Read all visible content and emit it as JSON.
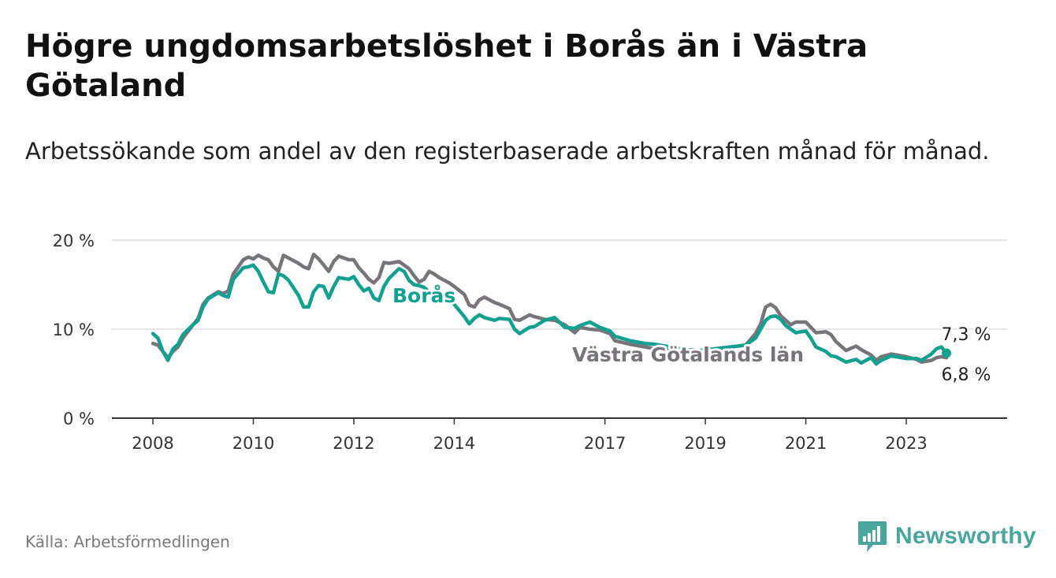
{
  "header": {
    "title": "Högre ungdomsarbetslöshet i Borås än i Västra Götaland",
    "subtitle": "Arbetssökande som andel av den registerbaserade arbetskraften månad för månad."
  },
  "footer": {
    "source": "Källa: Arbetsförmedlingen",
    "brand": "Newsworthy"
  },
  "colors": {
    "boras": "#13a090",
    "vastra": "#77757a",
    "axis": "#333333",
    "grid": "#dddddd",
    "brand": "#4aa69d"
  },
  "chart_data": {
    "type": "line",
    "title": "Högre ungdomsarbetslöshet i Borås än i Västra Götaland",
    "xlabel": "",
    "ylabel": "",
    "xlim": [
      2008,
      2024.6
    ],
    "ylim": [
      0,
      20
    ],
    "y_ticks": [
      0,
      10,
      20
    ],
    "y_tick_labels": [
      "0 %",
      "10 %",
      "20 %"
    ],
    "x_ticks": [
      2008,
      2010,
      2012,
      2014,
      2017,
      2019,
      2021,
      2023
    ],
    "x_tick_labels": [
      "2008",
      "2010",
      "2012",
      "2014",
      "2017",
      "2019",
      "2021",
      "2023"
    ],
    "grid": true,
    "series": [
      {
        "name": "Västra Götalands län",
        "x": [
          2008.0,
          2008.1,
          2008.2,
          2008.3,
          2008.4,
          2008.5,
          2008.6,
          2008.8,
          2008.9,
          2009.0,
          2009.1,
          2009.3,
          2009.4,
          2009.5,
          2009.6,
          2009.8,
          2009.9,
          2010.0,
          2010.1,
          2010.2,
          2010.3,
          2010.4,
          2010.5,
          2010.6,
          2010.7,
          2010.9,
          2011.0,
          2011.1,
          2011.2,
          2011.3,
          2011.4,
          2011.5,
          2011.6,
          2011.7,
          2011.9,
          2012.0,
          2012.1,
          2012.2,
          2012.3,
          2012.4,
          2012.5,
          2012.6,
          2012.7,
          2012.9,
          2013.0,
          2013.1,
          2013.2,
          2013.3,
          2013.4,
          2013.5,
          2013.6,
          2013.7,
          2013.9,
          2014.0,
          2014.2,
          2014.3,
          2014.4,
          2014.5,
          2014.6,
          2014.8,
          2014.9,
          2015.1,
          2015.2,
          2015.3,
          2015.5,
          2015.6,
          2015.8,
          2016.0,
          2016.2,
          2016.4,
          2016.5,
          2016.7,
          2016.9,
          2017.1,
          2017.2,
          2017.5,
          2017.8,
          2018.0,
          2018.3,
          2018.6,
          2018.9,
          2019.2,
          2019.5,
          2019.8,
          2020.0,
          2020.1,
          2020.2,
          2020.3,
          2020.4,
          2020.5,
          2020.6,
          2020.7,
          2020.8,
          2021.0,
          2021.1,
          2021.2,
          2021.4,
          2021.5,
          2021.6,
          2021.8,
          2022.0,
          2022.1,
          2022.3,
          2022.4,
          2022.5,
          2022.7,
          2022.9,
          2023.0,
          2023.2,
          2023.3,
          2023.5,
          2023.6,
          2023.7,
          2023.8
        ],
        "values": [
          8.4,
          8.2,
          7.5,
          6.8,
          7.5,
          8.0,
          9.0,
          10.5,
          11.2,
          12.8,
          13.5,
          14.2,
          14.0,
          14.3,
          16.2,
          17.8,
          18.1,
          17.9,
          18.3,
          18.0,
          17.8,
          17.0,
          16.5,
          18.3,
          18.0,
          17.4,
          17.0,
          16.8,
          18.4,
          17.9,
          17.2,
          16.5,
          17.6,
          18.2,
          17.8,
          17.8,
          16.9,
          16.3,
          15.6,
          15.2,
          15.8,
          17.5,
          17.4,
          17.6,
          17.2,
          16.8,
          16.0,
          15.3,
          15.6,
          16.5,
          16.2,
          15.8,
          15.2,
          14.8,
          13.9,
          12.7,
          12.5,
          13.3,
          13.6,
          13.0,
          12.8,
          12.3,
          11.1,
          11.0,
          11.6,
          11.4,
          11.1,
          11.0,
          10.5,
          9.6,
          10.2,
          10.0,
          9.9,
          9.5,
          8.7,
          8.3,
          8.0,
          7.8,
          7.7,
          7.7,
          7.6,
          7.8,
          8.0,
          8.2,
          9.5,
          10.6,
          12.5,
          12.8,
          12.4,
          11.5,
          11.0,
          10.5,
          10.8,
          10.8,
          10.2,
          9.6,
          9.7,
          9.4,
          8.6,
          7.6,
          8.1,
          7.7,
          7.1,
          6.5,
          6.9,
          7.2,
          7.0,
          6.9,
          6.6,
          6.3,
          6.5,
          6.8,
          6.9,
          6.8
        ],
        "end_label": "6,8 %"
      },
      {
        "name": "Borås",
        "x": [
          2008.0,
          2008.1,
          2008.2,
          2008.3,
          2008.4,
          2008.5,
          2008.6,
          2008.8,
          2008.9,
          2009.0,
          2009.1,
          2009.3,
          2009.4,
          2009.5,
          2009.6,
          2009.8,
          2009.9,
          2010.0,
          2010.1,
          2010.2,
          2010.3,
          2010.4,
          2010.5,
          2010.6,
          2010.7,
          2010.9,
          2011.0,
          2011.1,
          2011.2,
          2011.3,
          2011.4,
          2011.5,
          2011.6,
          2011.7,
          2011.9,
          2012.0,
          2012.1,
          2012.2,
          2012.3,
          2012.4,
          2012.5,
          2012.6,
          2012.7,
          2012.9,
          2013.0,
          2013.1,
          2013.2,
          2013.3,
          2013.4,
          2013.5,
          2013.6,
          2013.7,
          2013.9,
          2014.0,
          2014.2,
          2014.3,
          2014.4,
          2014.5,
          2014.6,
          2014.8,
          2014.9,
          2015.1,
          2015.2,
          2015.3,
          2015.5,
          2015.6,
          2015.8,
          2016.0,
          2016.2,
          2016.4,
          2016.5,
          2016.7,
          2016.9,
          2017.1,
          2017.2,
          2017.5,
          2017.8,
          2018.0,
          2018.3,
          2018.6,
          2018.9,
          2019.2,
          2019.5,
          2019.8,
          2020.0,
          2020.1,
          2020.2,
          2020.3,
          2020.4,
          2020.5,
          2020.6,
          2020.7,
          2020.8,
          2021.0,
          2021.1,
          2021.2,
          2021.4,
          2021.5,
          2021.6,
          2021.8,
          2022.0,
          2022.1,
          2022.3,
          2022.4,
          2022.5,
          2022.7,
          2022.9,
          2023.0,
          2023.2,
          2023.3,
          2023.5,
          2023.6,
          2023.7,
          2023.8
        ],
        "values": [
          9.5,
          9.0,
          7.5,
          6.5,
          7.8,
          8.3,
          9.4,
          10.5,
          11.0,
          12.5,
          13.4,
          14.1,
          13.8,
          13.6,
          15.6,
          16.9,
          17.0,
          17.2,
          16.5,
          15.3,
          14.2,
          14.1,
          16.2,
          16.0,
          15.5,
          13.8,
          12.5,
          12.5,
          14.2,
          14.9,
          14.8,
          13.5,
          14.8,
          15.8,
          15.6,
          15.9,
          15.0,
          14.3,
          14.6,
          13.5,
          13.2,
          14.8,
          15.7,
          16.8,
          16.5,
          15.5,
          15.0,
          14.9,
          14.7,
          14.2,
          13.6,
          13.4,
          13.3,
          12.8,
          11.4,
          10.6,
          11.2,
          11.6,
          11.3,
          11.0,
          11.2,
          11.1,
          10.0,
          9.5,
          10.2,
          10.3,
          11.0,
          11.3,
          10.2,
          10.1,
          10.4,
          10.8,
          10.2,
          9.8,
          9.2,
          8.7,
          8.4,
          8.3,
          8.0,
          7.7,
          7.6,
          7.8,
          8.0,
          8.2,
          9.0,
          10.0,
          11.0,
          11.4,
          11.5,
          11.1,
          10.4,
          10.0,
          9.6,
          9.8,
          9.0,
          8.0,
          7.5,
          7.0,
          6.9,
          6.3,
          6.6,
          6.2,
          6.8,
          6.1,
          6.5,
          7.0,
          6.8,
          6.7,
          6.7,
          6.5,
          7.2,
          7.8,
          8.0,
          7.3
        ],
        "end_label": "7,3 %"
      }
    ],
    "series_labels": {
      "boras": "Borås",
      "vastra": "Västra Götalands län"
    }
  }
}
